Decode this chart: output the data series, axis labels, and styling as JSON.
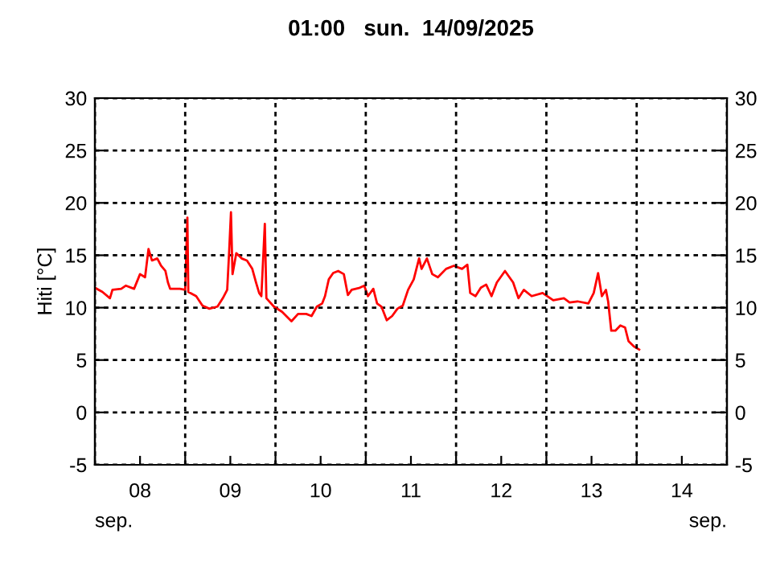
{
  "chart_data": {
    "type": "line",
    "title": "01:00   sun.  14/09/2025",
    "ylabel": "Hiti [°C]",
    "annotations": [
      "sep.",
      "sep."
    ],
    "x": [
      "2025-09-08T00:00",
      "2025-09-08T02:00",
      "2025-09-08T04:00",
      "2025-09-08T04:40",
      "2025-09-08T07:00",
      "2025-09-08T08:15",
      "2025-09-08T10:25",
      "2025-09-08T12:00",
      "2025-09-08T13:20",
      "2025-09-08T14:15",
      "2025-09-08T15:10",
      "2025-09-08T16:35",
      "2025-09-08T17:35",
      "2025-09-08T18:45",
      "2025-09-08T19:25",
      "2025-09-08T20:00",
      "2025-09-08T22:35",
      "2025-09-09T00:00",
      "2025-09-09T00:35",
      "2025-09-09T00:50",
      "2025-09-09T02:55",
      "2025-09-09T04:35",
      "2025-09-09T06:25",
      "2025-09-09T08:35",
      "2025-09-09T10:00",
      "2025-09-09T11:10",
      "2025-09-09T11:40",
      "2025-09-09T12:10",
      "2025-09-09T12:35",
      "2025-09-09T13:35",
      "2025-09-09T15:00",
      "2025-09-09T16:25",
      "2025-09-09T17:50",
      "2025-09-09T18:50",
      "2025-09-09T19:40",
      "2025-09-09T20:15",
      "2025-09-09T21:10",
      "2025-09-09T21:35",
      "2025-09-09T23:35",
      "2025-09-10T01:45",
      "2025-09-10T04:15",
      "2025-09-10T06:00",
      "2025-09-10T08:10",
      "2025-09-10T09:35",
      "2025-09-10T11:00",
      "2025-09-10T12:25",
      "2025-09-10T13:10",
      "2025-09-10T14:10",
      "2025-09-10T15:20",
      "2025-09-10T16:40",
      "2025-09-10T18:10",
      "2025-09-10T19:15",
      "2025-09-10T20:15",
      "2025-09-10T22:25",
      "2025-09-10T23:35",
      "2025-09-11T00:35",
      "2025-09-11T02:00",
      "2025-09-11T03:00",
      "2025-09-11T04:10",
      "2025-09-11T05:35",
      "2025-09-11T07:00",
      "2025-09-11T08:25",
      "2025-09-11T09:50",
      "2025-09-11T11:15",
      "2025-09-11T12:45",
      "2025-09-11T14:10",
      "2025-09-11T14:50",
      "2025-09-11T16:15",
      "2025-09-11T17:40",
      "2025-09-11T19:10",
      "2025-09-11T21:20",
      "2025-09-11T23:25",
      "2025-09-12T01:35",
      "2025-09-12T03:00",
      "2025-09-12T03:45",
      "2025-09-12T05:10",
      "2025-09-12T06:35",
      "2025-09-12T08:00",
      "2025-09-12T09:25",
      "2025-09-12T10:50",
      "2025-09-12T13:00",
      "2025-09-12T15:10",
      "2025-09-12T16:35",
      "2025-09-12T18:00",
      "2025-09-12T20:05",
      "2025-09-12T23:00",
      "2025-09-13T01:50",
      "2025-09-13T04:40",
      "2025-09-13T06:10",
      "2025-09-13T08:15",
      "2025-09-13T11:10",
      "2025-09-13T12:35",
      "2025-09-13T13:45",
      "2025-09-13T14:45",
      "2025-09-13T15:50",
      "2025-09-13T16:25",
      "2025-09-13T17:15",
      "2025-09-13T18:20",
      "2025-09-13T19:40",
      "2025-09-13T20:55",
      "2025-09-13T21:50",
      "2025-09-13T23:15",
      "2025-09-14T00:40"
    ],
    "series": [
      {
        "color": "#ff0000",
        "values": [
          11.9,
          11.5,
          10.9,
          11.7,
          11.8,
          12.1,
          11.8,
          13.2,
          12.9,
          15.6,
          14.5,
          14.7,
          14.0,
          13.5,
          12.4,
          11.8,
          11.8,
          11.7,
          18.6,
          11.5,
          11.1,
          10.2,
          9.9,
          10.1,
          10.9,
          11.7,
          15.2,
          19.1,
          13.2,
          15.2,
          14.7,
          14.5,
          13.7,
          12.4,
          11.4,
          11.1,
          18.0,
          10.9,
          10.1,
          9.6,
          8.7,
          9.4,
          9.4,
          9.2,
          10.1,
          10.4,
          11.1,
          12.7,
          13.3,
          13.5,
          13.2,
          11.2,
          11.7,
          11.9,
          12.1,
          11.1,
          11.8,
          10.4,
          10.1,
          8.8,
          9.2,
          9.9,
          10.2,
          11.7,
          12.7,
          14.7,
          13.7,
          14.7,
          13.2,
          12.9,
          13.7,
          14.0,
          13.7,
          14.1,
          11.4,
          11.1,
          11.9,
          12.2,
          11.1,
          12.4,
          13.5,
          12.4,
          10.9,
          11.7,
          11.1,
          11.4,
          10.7,
          10.9,
          10.5,
          10.6,
          10.4,
          11.4,
          13.3,
          11.1,
          11.7,
          10.6,
          7.8,
          7.8,
          8.3,
          8.1,
          6.8,
          6.3,
          6.0
        ]
      }
    ],
    "xlim": [
      "2025-09-08T00:00",
      "2025-09-15T00:00"
    ],
    "xticks": [
      {
        "value": "2025-09-08T00:00",
        "label": null
      },
      {
        "value": "2025-09-08T12:00",
        "label": "08"
      },
      {
        "value": "2025-09-09T00:00",
        "label": null
      },
      {
        "value": "2025-09-09T12:00",
        "label": "09"
      },
      {
        "value": "2025-09-10T00:00",
        "label": null
      },
      {
        "value": "2025-09-10T12:00",
        "label": "10"
      },
      {
        "value": "2025-09-11T00:00",
        "label": null
      },
      {
        "value": "2025-09-11T12:00",
        "label": "11"
      },
      {
        "value": "2025-09-12T00:00",
        "label": null
      },
      {
        "value": "2025-09-12T12:00",
        "label": "12"
      },
      {
        "value": "2025-09-13T00:00",
        "label": null
      },
      {
        "value": "2025-09-13T12:00",
        "label": "13"
      },
      {
        "value": "2025-09-14T00:00",
        "label": null
      },
      {
        "value": "2025-09-14T12:00",
        "label": "14"
      },
      {
        "value": "2025-09-15T00:00",
        "label": null
      }
    ],
    "ylim": [
      -5,
      30
    ],
    "yticks": [
      -5,
      0,
      5,
      10,
      15,
      20,
      25,
      30
    ],
    "y2lim": [
      -5,
      30
    ],
    "y2ticks": [
      -5,
      0,
      5,
      10,
      15,
      20,
      25,
      30
    ],
    "grid": true,
    "legend": false,
    "marker": "none",
    "line_style": "solid"
  }
}
